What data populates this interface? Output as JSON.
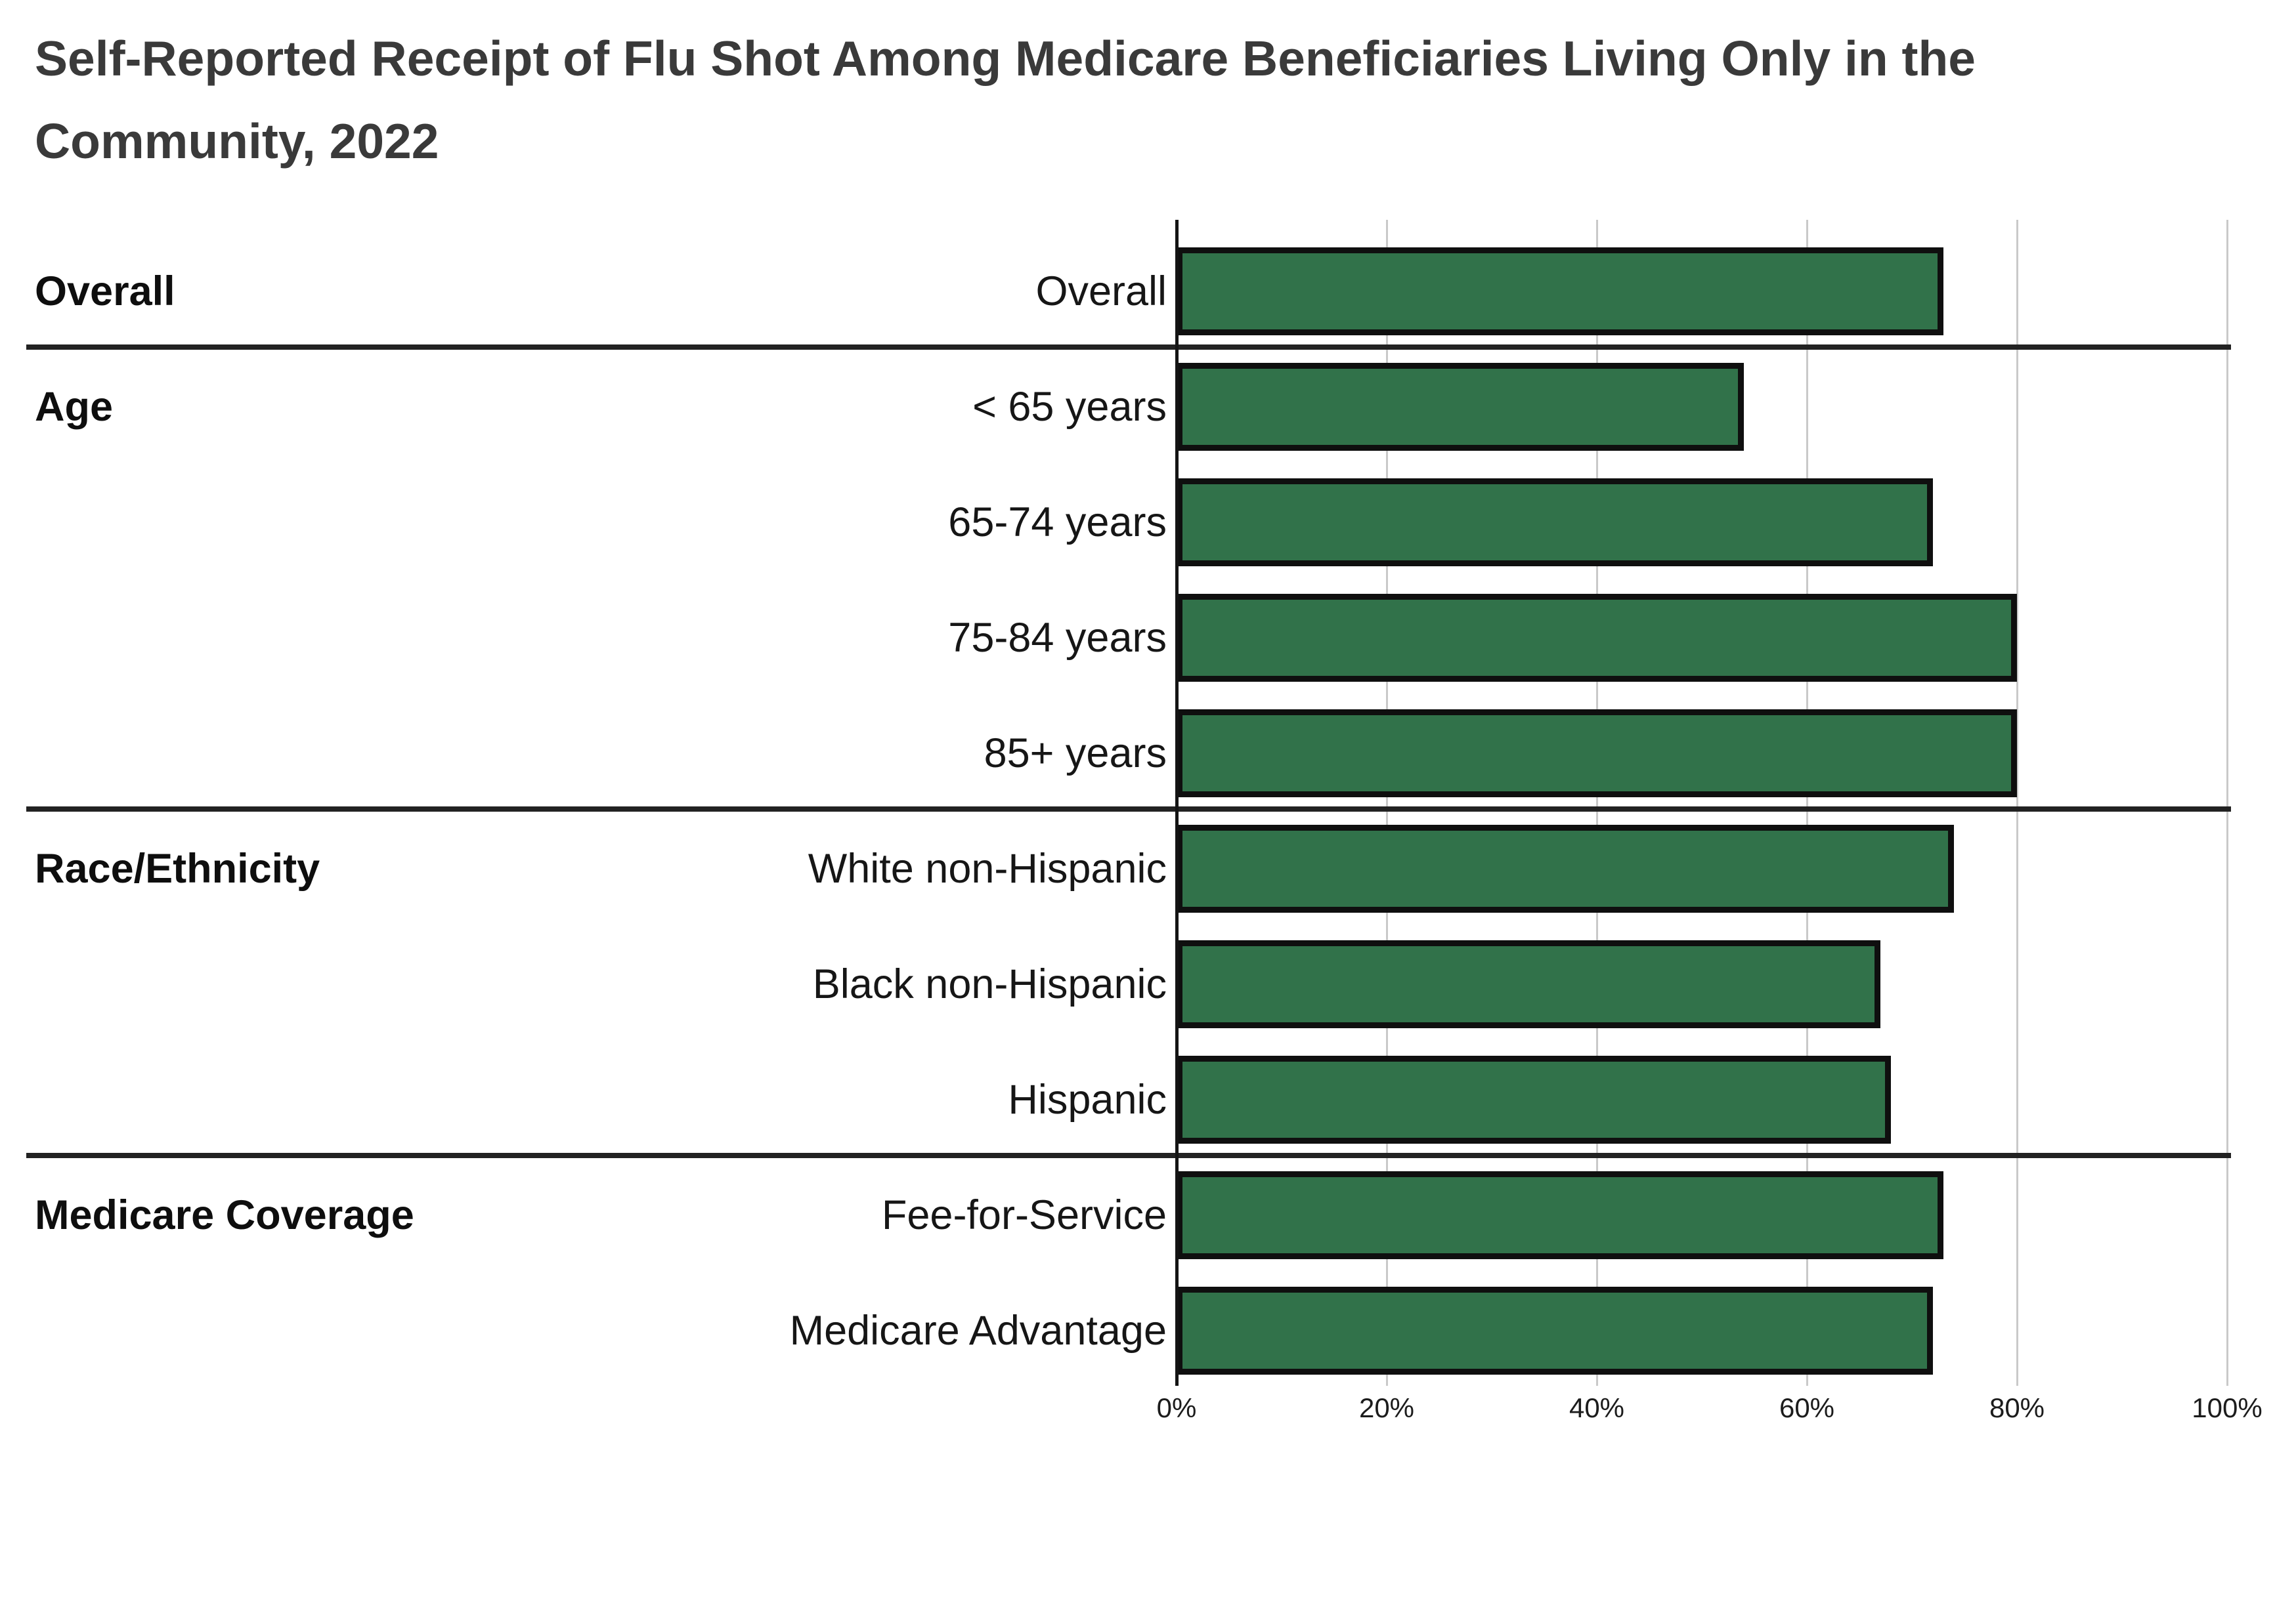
{
  "page": {
    "background": "#ffffff"
  },
  "chart_data": {
    "type": "bar",
    "orientation": "horizontal",
    "title": "Self-Reported Receipt of Flu Shot Among Medicare Beneficiaries Living Only in the Community, 2022",
    "xlabel": "",
    "ylabel": "",
    "unit": "%",
    "xlim": [
      0,
      100
    ],
    "x_tick_labels": [
      "0%",
      "20%",
      "40%",
      "60%",
      "80%",
      "100%"
    ],
    "x_tick_values": [
      0,
      20,
      40,
      60,
      80,
      100
    ],
    "grid": "vertical gridlines every 20%",
    "legend": "none",
    "bar_color": "#31724A",
    "bar_border_color": "#0f0f0f",
    "gridline_color": "#c9c9c9",
    "separator_color": "#222222",
    "groups": [
      {
        "label": "Overall",
        "rows": [
          {
            "label": "Overall",
            "value": 73
          }
        ]
      },
      {
        "label": "Age",
        "rows": [
          {
            "label": "< 65 years",
            "value": 54
          },
          {
            "label": "65-74 years",
            "value": 72
          },
          {
            "label": "75-84 years",
            "value": 80
          },
          {
            "label": "85+ years",
            "value": 80
          }
        ]
      },
      {
        "label": "Race/Ethnicity",
        "rows": [
          {
            "label": "White non-Hispanic",
            "value": 74
          },
          {
            "label": "Black non-Hispanic",
            "value": 67
          },
          {
            "label": "Hispanic",
            "value": 68
          }
        ]
      },
      {
        "label": "Medicare Coverage",
        "rows": [
          {
            "label": "Fee-for-Service",
            "value": 73
          },
          {
            "label": "Medicare Advantage",
            "value": 72
          }
        ]
      }
    ]
  }
}
